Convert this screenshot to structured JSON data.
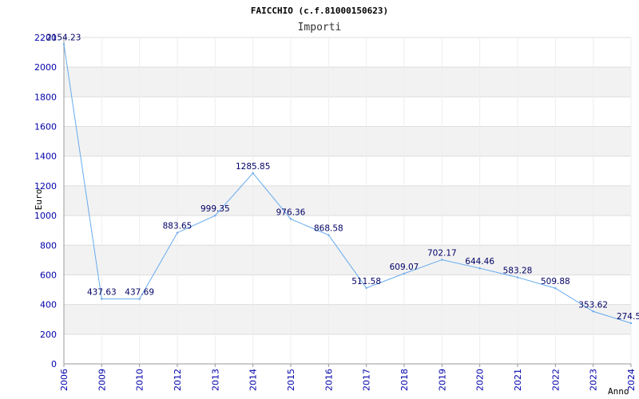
{
  "chart_data": {
    "type": "line",
    "title": "FAICCHIO (c.f.81000150623)",
    "subtitle": "Importi",
    "xlabel": "Anno",
    "ylabel": "Euro",
    "ylim": [
      0,
      2200
    ],
    "yticks": [
      "0",
      "200",
      "400",
      "600",
      "800",
      "1000",
      "1200",
      "1400",
      "1600",
      "1800",
      "2000",
      "2200"
    ],
    "categories": [
      "2006",
      "2009",
      "2010",
      "2012",
      "2013",
      "2014",
      "2015",
      "2016",
      "2017",
      "2018",
      "2019",
      "2020",
      "2021",
      "2022",
      "2023",
      "2024"
    ],
    "series": [
      {
        "name": "Importi",
        "values": [
          2154.23,
          437.63,
          437.69,
          883.65,
          999.35,
          1285.85,
          976.36,
          868.58,
          511.58,
          609.07,
          702.17,
          644.46,
          583.28,
          509.88,
          353.62,
          274.5
        ],
        "labels": [
          "2154.23",
          "437.63",
          "437.69",
          "883.65",
          "999.35",
          "1285.85",
          "976.36",
          "868.58",
          "511.58",
          "609.07",
          "702.17",
          "644.46",
          "583.28",
          "509.88",
          "353.62",
          "274.5"
        ]
      }
    ],
    "colors": {
      "line": "#66aaee",
      "band": "#f2f2f2",
      "grid": "#dddddd",
      "tick_text": "#0000aa",
      "label_text": "#000066"
    }
  }
}
